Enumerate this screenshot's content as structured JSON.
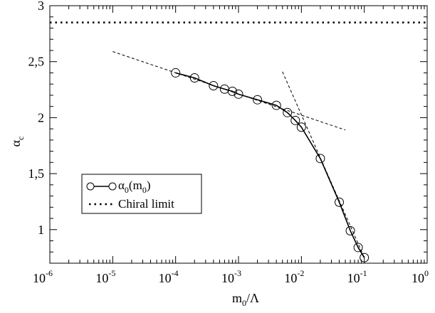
{
  "chart_data": {
    "type": "line",
    "x_scale": "log",
    "xlim": [
      1e-06,
      1
    ],
    "ylim": [
      0.7,
      3
    ],
    "xlabel": {
      "base": "m",
      "sub": "0",
      "tail": "/Λ"
    },
    "ylabel": {
      "base": "α",
      "sub": "c"
    },
    "x_ticks": [
      {
        "base": "10",
        "exp": "-6"
      },
      {
        "base": "10",
        "exp": "-5"
      },
      {
        "base": "10",
        "exp": "-4"
      },
      {
        "base": "10",
        "exp": "-3"
      },
      {
        "base": "10",
        "exp": "-2"
      },
      {
        "base": "10",
        "exp": "-1"
      },
      {
        "base": "10",
        "exp": "0"
      }
    ],
    "y_ticks": [
      {
        "value": 1,
        "label": "1"
      },
      {
        "value": 1.5,
        "label": "1,5"
      },
      {
        "value": 2,
        "label": "2"
      },
      {
        "value": 2.5,
        "label": "2,5"
      },
      {
        "value": 3,
        "label": "3"
      }
    ],
    "series": [
      {
        "name": "α0(m0)",
        "legend": {
          "base": "α",
          "sub": "0",
          "mid": "(m",
          "sub2": "0",
          "tail": ")"
        },
        "style": "solid-line-open-circles",
        "x": [
          0.0001,
          0.0002,
          0.0004,
          0.0006,
          0.0008,
          0.001,
          0.002,
          0.004,
          0.006,
          0.008,
          0.01,
          0.02,
          0.04,
          0.06,
          0.08,
          0.1
        ],
        "y": [
          2.4,
          2.355,
          2.285,
          2.255,
          2.235,
          2.21,
          2.16,
          2.11,
          2.045,
          1.975,
          1.915,
          1.635,
          1.245,
          0.99,
          0.84,
          0.75
        ]
      },
      {
        "name": "Chiral limit",
        "legend": {
          "text": "Chiral limit"
        },
        "style": "dotted",
        "x": [
          1e-06,
          1
        ],
        "y": [
          2.85,
          2.85
        ]
      }
    ],
    "fit_lines": [
      {
        "style": "dashed",
        "x": [
          1e-05,
          0.05
        ],
        "y": [
          2.59,
          1.89
        ]
      },
      {
        "style": "dashed",
        "x": [
          0.005,
          0.1
        ],
        "y": [
          2.41,
          0.75
        ]
      }
    ],
    "grid": false,
    "legend_position": "left-middle"
  }
}
